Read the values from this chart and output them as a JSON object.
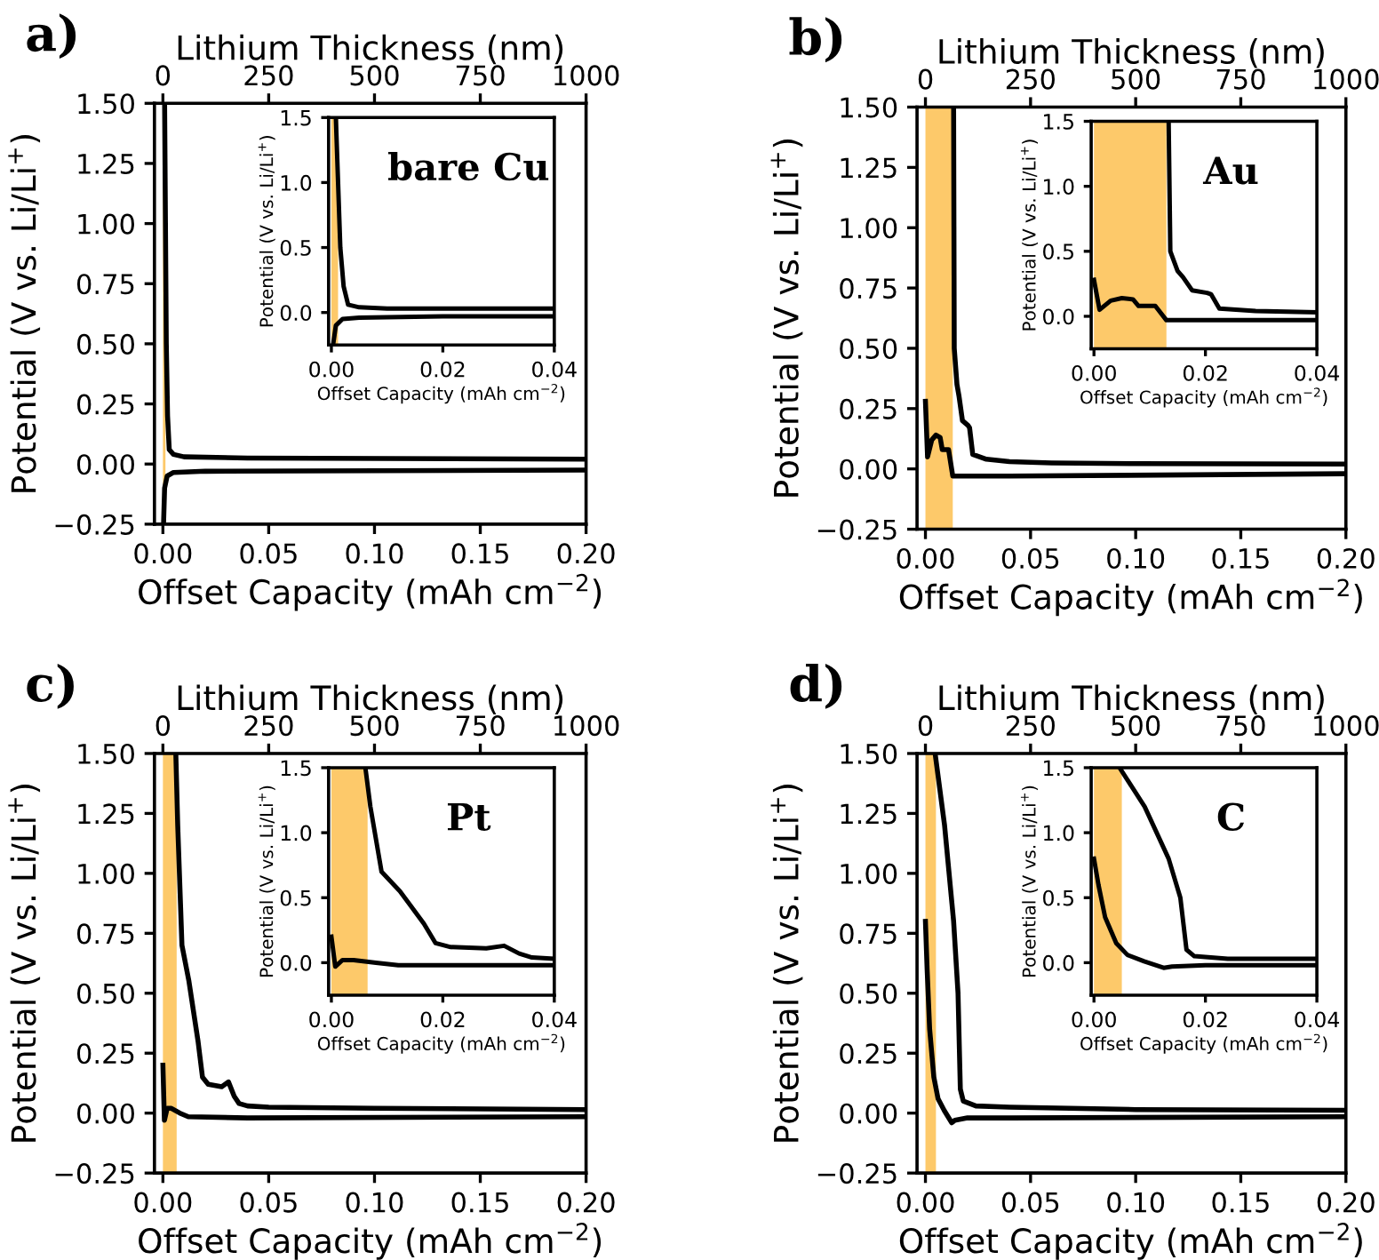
{
  "chart_data": [
    {
      "type": "line",
      "annotations": [
        "a)"
      ],
      "xlabel": "Offset Capacity (mAh cm$^{−2}$)",
      "ylabel": "Potential (V vs. Li/Li$^{+}$)",
      "x2label": "Lithium Thickness (nm)",
      "xlim": [
        -0.004,
        0.2
      ],
      "ylim": [
        -0.25,
        1.5
      ],
      "x2lim": [
        -20,
        1000
      ],
      "x2ticks": [
        0,
        250,
        500,
        750,
        1000
      ],
      "xticks": [
        {
          "value": 0,
          "label": "0.00"
        },
        {
          "value": 0.05,
          "label": "0.05"
        },
        {
          "value": 0.1,
          "label": "0.10"
        },
        {
          "value": 0.15,
          "label": "0.15"
        },
        {
          "value": 0.2,
          "label": "0.20"
        }
      ],
      "yticks": [
        {
          "value": -0.25,
          "label": "−0.25"
        },
        {
          "value": 0,
          "label": "0.00"
        },
        {
          "value": 0.25,
          "label": "0.25"
        },
        {
          "value": 0.5,
          "label": "0.50"
        },
        {
          "value": 0.75,
          "label": "0.75"
        },
        {
          "value": 1.0,
          "label": "1.00"
        },
        {
          "value": 1.25,
          "label": "1.25"
        },
        {
          "value": 1.5,
          "label": "1.50"
        }
      ],
      "bands": [
        {
          "axis": "x",
          "from": 0,
          "to": 0.0012,
          "color": "#fdc96a"
        }
      ],
      "series": [
        {
          "color": "#000000",
          "x": [
            0.0008,
            0.0012,
            0.0016,
            0.0022,
            0.003,
            0.005,
            0.01,
            0.04,
            0.2
          ],
          "values": [
            1.5,
            1.0,
            0.5,
            0.2,
            0.06,
            0.04,
            0.03,
            0.025,
            0.02
          ]
        },
        {
          "color": "#000000",
          "x": [
            0.0003,
            0.0008,
            0.002,
            0.005,
            0.02,
            0.2
          ],
          "values": [
            -0.25,
            -0.1,
            -0.05,
            -0.035,
            -0.03,
            -0.025
          ]
        }
      ]
    },
    {
      "type": "line",
      "annotations": [
        "bare Cu"
      ],
      "xlabel": "Offset Capacity (mAh cm$^{−2}$)",
      "ylabel": "Potential (V vs. Li/Li$^{+}$)",
      "xlim": [
        -0.0005,
        0.04
      ],
      "ylim": [
        -0.25,
        1.5
      ],
      "xticks": [
        {
          "value": 0,
          "label": "0.00"
        },
        {
          "value": 0.02,
          "label": "0.02"
        },
        {
          "value": 0.04,
          "label": "0.04"
        }
      ],
      "yticks": [
        {
          "value": 0,
          "label": "0.0"
        },
        {
          "value": 0.5,
          "label": "0.5"
        },
        {
          "value": 1.0,
          "label": "1.0"
        },
        {
          "value": 1.5,
          "label": "1.5"
        }
      ],
      "bands": [
        {
          "axis": "x",
          "from": 0,
          "to": 0.0012,
          "color": "#fdc96a"
        }
      ],
      "series": [
        {
          "color": "#000000",
          "x": [
            0.0008,
            0.0012,
            0.0016,
            0.0022,
            0.003,
            0.005,
            0.01,
            0.04
          ],
          "values": [
            1.5,
            1.0,
            0.5,
            0.2,
            0.06,
            0.04,
            0.03,
            0.03
          ]
        },
        {
          "color": "#000000",
          "x": [
            0.0003,
            0.0008,
            0.002,
            0.005,
            0.02,
            0.04
          ],
          "values": [
            -0.25,
            -0.1,
            -0.05,
            -0.04,
            -0.03,
            -0.03
          ]
        }
      ]
    },
    {
      "type": "line",
      "annotations": [
        "b)"
      ],
      "xlabel": "Offset Capacity (mAh cm$^{−2}$)",
      "ylabel": "Potential (V vs. Li/Li$^{+}$)",
      "x2label": "Lithium Thickness (nm)",
      "xlim": [
        -0.004,
        0.2
      ],
      "ylim": [
        -0.25,
        1.5
      ],
      "x2lim": [
        -20,
        1000
      ],
      "x2ticks": [
        0,
        250,
        500,
        750,
        1000
      ],
      "xticks": [
        {
          "value": 0,
          "label": "0.00"
        },
        {
          "value": 0.05,
          "label": "0.05"
        },
        {
          "value": 0.1,
          "label": "0.10"
        },
        {
          "value": 0.15,
          "label": "0.15"
        },
        {
          "value": 0.2,
          "label": "0.20"
        }
      ],
      "yticks": [
        {
          "value": -0.25,
          "label": "−0.25"
        },
        {
          "value": 0,
          "label": "0.00"
        },
        {
          "value": 0.25,
          "label": "0.25"
        },
        {
          "value": 0.5,
          "label": "0.50"
        },
        {
          "value": 0.75,
          "label": "0.75"
        },
        {
          "value": 1.0,
          "label": "1.00"
        },
        {
          "value": 1.25,
          "label": "1.25"
        },
        {
          "value": 1.5,
          "label": "1.50"
        }
      ],
      "bands": [
        {
          "axis": "x",
          "from": 0,
          "to": 0.013,
          "color": "#fdc96a"
        }
      ],
      "series": [
        {
          "color": "#000000",
          "x": [
            0.0134,
            0.0137,
            0.015,
            0.016,
            0.0176,
            0.0203,
            0.021,
            0.0225,
            0.029,
            0.04,
            0.06,
            0.1,
            0.2
          ],
          "values": [
            1.5,
            0.5,
            0.35,
            0.3,
            0.2,
            0.18,
            0.17,
            0.06,
            0.04,
            0.03,
            0.025,
            0.022,
            0.02
          ]
        },
        {
          "color": "#000000",
          "x": [
            0,
            0.001,
            0.003,
            0.005,
            0.007,
            0.008,
            0.011,
            0.013,
            0.04,
            0.2
          ],
          "values": [
            0.28,
            0.05,
            0.12,
            0.14,
            0.13,
            0.08,
            0.08,
            -0.03,
            -0.03,
            -0.02
          ]
        }
      ]
    },
    {
      "type": "line",
      "annotations": [
        "Au"
      ],
      "xlabel": "Offset Capacity (mAh cm$^{−2}$)",
      "ylabel": "Potential (V vs. Li/Li$^{+}$)",
      "xlim": [
        -0.0005,
        0.04
      ],
      "ylim": [
        -0.25,
        1.5
      ],
      "xticks": [
        {
          "value": 0,
          "label": "0.00"
        },
        {
          "value": 0.02,
          "label": "0.02"
        },
        {
          "value": 0.04,
          "label": "0.04"
        }
      ],
      "yticks": [
        {
          "value": 0,
          "label": "0.0"
        },
        {
          "value": 0.5,
          "label": "0.5"
        },
        {
          "value": 1.0,
          "label": "1.0"
        },
        {
          "value": 1.5,
          "label": "1.5"
        }
      ],
      "bands": [
        {
          "axis": "x",
          "from": 0,
          "to": 0.013,
          "color": "#fdc96a"
        }
      ],
      "series": [
        {
          "color": "#000000",
          "x": [
            0.0134,
            0.0137,
            0.015,
            0.016,
            0.0176,
            0.0203,
            0.021,
            0.0225,
            0.029,
            0.04
          ],
          "values": [
            1.5,
            0.5,
            0.35,
            0.3,
            0.2,
            0.18,
            0.17,
            0.06,
            0.04,
            0.03
          ]
        },
        {
          "color": "#000000",
          "x": [
            0,
            0.001,
            0.003,
            0.005,
            0.007,
            0.008,
            0.011,
            0.013,
            0.04
          ],
          "values": [
            0.28,
            0.05,
            0.12,
            0.14,
            0.13,
            0.08,
            0.08,
            -0.03,
            -0.03
          ]
        }
      ]
    },
    {
      "type": "line",
      "annotations": [
        "c)"
      ],
      "xlabel": "Offset Capacity (mAh cm$^{−2}$)",
      "ylabel": "Potential (V vs. Li/Li$^{+}$)",
      "x2label": "Lithium Thickness (nm)",
      "xlim": [
        -0.004,
        0.2
      ],
      "ylim": [
        -0.25,
        1.5
      ],
      "x2lim": [
        -20,
        1000
      ],
      "x2ticks": [
        0,
        250,
        500,
        750,
        1000
      ],
      "xticks": [
        {
          "value": 0,
          "label": "0.00"
        },
        {
          "value": 0.05,
          "label": "0.05"
        },
        {
          "value": 0.1,
          "label": "0.10"
        },
        {
          "value": 0.15,
          "label": "0.15"
        },
        {
          "value": 0.2,
          "label": "0.20"
        }
      ],
      "yticks": [
        {
          "value": -0.25,
          "label": "−0.25"
        },
        {
          "value": 0,
          "label": "0.00"
        },
        {
          "value": 0.25,
          "label": "0.25"
        },
        {
          "value": 0.5,
          "label": "0.50"
        },
        {
          "value": 0.75,
          "label": "0.75"
        },
        {
          "value": 1.0,
          "label": "1.00"
        },
        {
          "value": 1.25,
          "label": "1.25"
        },
        {
          "value": 1.5,
          "label": "1.50"
        }
      ],
      "bands": [
        {
          "axis": "x",
          "from": 0,
          "to": 0.0065,
          "color": "#fdc96a"
        }
      ],
      "series": [
        {
          "color": "#000000",
          "x": [
            0.0061,
            0.007,
            0.009,
            0.0123,
            0.0166,
            0.0187,
            0.0214,
            0.0278,
            0.031,
            0.0337,
            0.036,
            0.04,
            0.05,
            0.1,
            0.2
          ],
          "values": [
            1.5,
            1.2,
            0.7,
            0.55,
            0.3,
            0.15,
            0.12,
            0.11,
            0.13,
            0.07,
            0.04,
            0.03,
            0.025,
            0.02,
            0.015
          ]
        },
        {
          "color": "#000000",
          "x": [
            0,
            0.0007,
            0.002,
            0.004,
            0.008,
            0.012,
            0.04,
            0.2
          ],
          "values": [
            0.2,
            -0.03,
            0.02,
            0.02,
            0,
            -0.015,
            -0.02,
            -0.015
          ]
        }
      ]
    },
    {
      "type": "line",
      "annotations": [
        "Pt"
      ],
      "xlabel": "Offset Capacity (mAh cm$^{−2}$)",
      "ylabel": "Potential (V vs. Li/Li$^{+}$)",
      "xlim": [
        -0.0005,
        0.04
      ],
      "ylim": [
        -0.25,
        1.5
      ],
      "xticks": [
        {
          "value": 0,
          "label": "0.00"
        },
        {
          "value": 0.02,
          "label": "0.02"
        },
        {
          "value": 0.04,
          "label": "0.04"
        }
      ],
      "yticks": [
        {
          "value": 0,
          "label": "0.0"
        },
        {
          "value": 0.5,
          "label": "0.5"
        },
        {
          "value": 1.0,
          "label": "1.0"
        },
        {
          "value": 1.5,
          "label": "1.5"
        }
      ],
      "bands": [
        {
          "axis": "x",
          "from": 0,
          "to": 0.0065,
          "color": "#fdc96a"
        }
      ],
      "series": [
        {
          "color": "#000000",
          "x": [
            0.0061,
            0.007,
            0.009,
            0.0123,
            0.0166,
            0.0187,
            0.0214,
            0.0278,
            0.031,
            0.0337,
            0.036,
            0.04
          ],
          "values": [
            1.5,
            1.2,
            0.7,
            0.55,
            0.3,
            0.15,
            0.12,
            0.11,
            0.13,
            0.07,
            0.04,
            0.03
          ]
        },
        {
          "color": "#000000",
          "x": [
            0,
            0.0007,
            0.002,
            0.004,
            0.008,
            0.012,
            0.04
          ],
          "values": [
            0.2,
            -0.03,
            0.02,
            0.02,
            0,
            -0.02,
            -0.02
          ]
        }
      ]
    },
    {
      "type": "line",
      "annotations": [
        "d)"
      ],
      "xlabel": "Offset Capacity (mAh cm$^{−2}$)",
      "ylabel": "Potential (V vs. Li/Li$^{+}$)",
      "x2label": "Lithium Thickness (nm)",
      "xlim": [
        -0.004,
        0.2
      ],
      "ylim": [
        -0.25,
        1.5
      ],
      "x2lim": [
        -20,
        1000
      ],
      "x2ticks": [
        0,
        250,
        500,
        750,
        1000
      ],
      "xticks": [
        {
          "value": 0,
          "label": "0.00"
        },
        {
          "value": 0.05,
          "label": "0.05"
        },
        {
          "value": 0.1,
          "label": "0.10"
        },
        {
          "value": 0.15,
          "label": "0.15"
        },
        {
          "value": 0.2,
          "label": "0.20"
        }
      ],
      "yticks": [
        {
          "value": -0.25,
          "label": "−0.25"
        },
        {
          "value": 0,
          "label": "0.00"
        },
        {
          "value": 0.25,
          "label": "0.25"
        },
        {
          "value": 0.5,
          "label": "0.50"
        },
        {
          "value": 0.75,
          "label": "0.75"
        },
        {
          "value": 1.0,
          "label": "1.00"
        },
        {
          "value": 1.25,
          "label": "1.25"
        },
        {
          "value": 1.5,
          "label": "1.50"
        }
      ],
      "bands": [
        {
          "axis": "x",
          "from": 0,
          "to": 0.005,
          "color": "#fdc96a"
        }
      ],
      "series": [
        {
          "color": "#000000",
          "x": [
            0.0046,
            0.0091,
            0.0134,
            0.0155,
            0.0166,
            0.018,
            0.024,
            0.04,
            0.1,
            0.2
          ],
          "values": [
            1.5,
            1.2,
            0.8,
            0.5,
            0.1,
            0.05,
            0.03,
            0.025,
            0.015,
            0.012
          ]
        },
        {
          "color": "#000000",
          "x": [
            0,
            0.0008,
            0.002,
            0.004,
            0.006,
            0.009,
            0.0125,
            0.014,
            0.02,
            0.04,
            0.2
          ],
          "values": [
            0.8,
            0.6,
            0.35,
            0.15,
            0.06,
            0.01,
            -0.04,
            -0.03,
            -0.02,
            -0.02,
            -0.015
          ]
        }
      ]
    },
    {
      "type": "line",
      "annotations": [
        "C"
      ],
      "xlabel": "Offset Capacity (mAh cm$^{−2}$)",
      "ylabel": "Potential (V vs. Li/Li$^{+}$)",
      "xlim": [
        -0.0005,
        0.04
      ],
      "ylim": [
        -0.25,
        1.5
      ],
      "xticks": [
        {
          "value": 0,
          "label": "0.00"
        },
        {
          "value": 0.02,
          "label": "0.02"
        },
        {
          "value": 0.04,
          "label": "0.04"
        }
      ],
      "yticks": [
        {
          "value": 0,
          "label": "0.0"
        },
        {
          "value": 0.5,
          "label": "0.5"
        },
        {
          "value": 1.0,
          "label": "1.0"
        },
        {
          "value": 1.5,
          "label": "1.5"
        }
      ],
      "bands": [
        {
          "axis": "x",
          "from": 0,
          "to": 0.005,
          "color": "#fdc96a"
        }
      ],
      "series": [
        {
          "color": "#000000",
          "x": [
            0.0046,
            0.0091,
            0.0134,
            0.0155,
            0.0166,
            0.018,
            0.024,
            0.04
          ],
          "values": [
            1.5,
            1.2,
            0.8,
            0.5,
            0.1,
            0.05,
            0.03,
            0.03
          ]
        },
        {
          "color": "#000000",
          "x": [
            0,
            0.0008,
            0.002,
            0.004,
            0.006,
            0.009,
            0.0125,
            0.014,
            0.02,
            0.04
          ],
          "values": [
            0.8,
            0.6,
            0.35,
            0.15,
            0.06,
            0.01,
            -0.04,
            -0.03,
            -0.02,
            -0.02
          ]
        }
      ]
    }
  ]
}
